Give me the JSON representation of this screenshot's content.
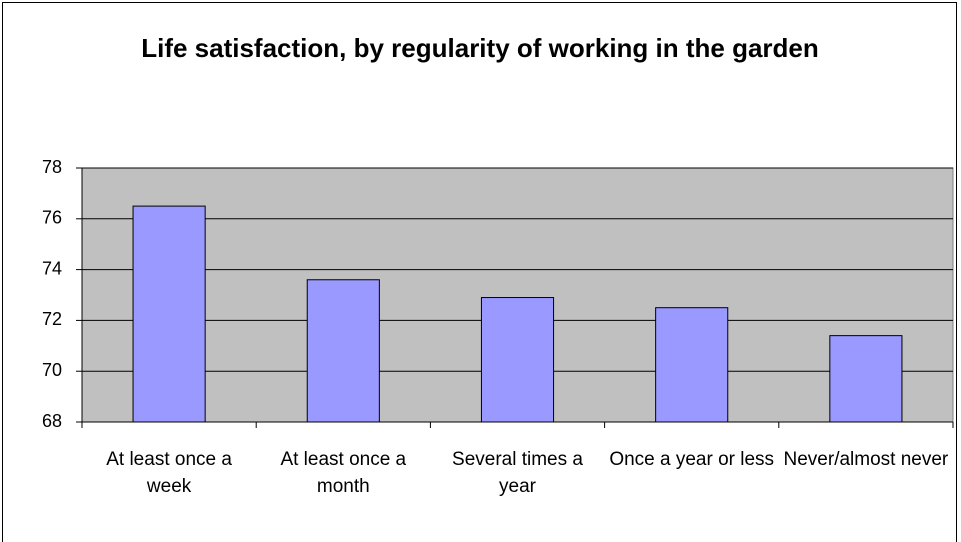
{
  "chart_data": {
    "type": "bar",
    "title": "Life satisfaction, by regularity of working in the garden",
    "categories": [
      "At least once a week",
      "At least once a month",
      "Several times a year",
      "Once a year or less",
      "Never/almost never"
    ],
    "values": [
      76.5,
      73.6,
      72.9,
      72.5,
      71.4
    ],
    "color": "#9999ff",
    "ylim": [
      68,
      78
    ],
    "yticks": [
      68,
      70,
      72,
      74,
      76,
      78
    ],
    "grid": true
  }
}
